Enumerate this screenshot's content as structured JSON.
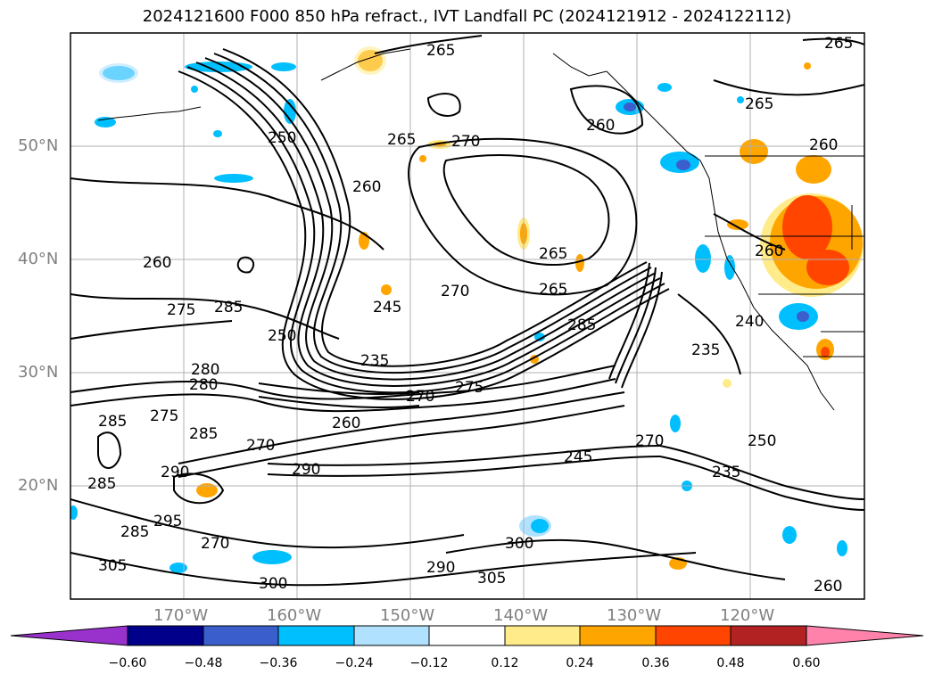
{
  "title": "2024121600 F000 850 hPa refract., IVT Landfall PC (2024121912 - 2024122112)",
  "map": {
    "lat_labels": [
      "50°N",
      "40°N",
      "30°N",
      "20°N"
    ],
    "lon_labels": [
      "170°W",
      "160°W",
      "150°W",
      "140°W",
      "130°W",
      "120°W"
    ],
    "contour_labels": [
      "265",
      "250",
      "265",
      "270",
      "260",
      "265",
      "265",
      "260",
      "260",
      "270",
      "265",
      "275",
      "285",
      "245",
      "270",
      "285",
      "235",
      "260",
      "240",
      "235",
      "280",
      "285",
      "275",
      "270",
      "275",
      "285",
      "250",
      "235",
      "245",
      "270",
      "290",
      "285",
      "290",
      "295",
      "285",
      "305",
      "300",
      "290",
      "305",
      "300",
      "280",
      "265",
      "250",
      "260",
      "270",
      "260",
      "260"
    ]
  },
  "colorbar": {
    "ticks": [
      "−0.60",
      "−0.48",
      "−0.36",
      "−0.24",
      "−0.12",
      "0.12",
      "0.24",
      "0.36",
      "0.48",
      "0.60"
    ],
    "colors": [
      "#9932cc",
      "#00008b",
      "#3a5fcd",
      "#00bfff",
      "#b0e2ff",
      "#ffffff",
      "#ffeb8a",
      "#ffa500",
      "#ff4500",
      "#b22222",
      "#ff82ab"
    ]
  }
}
